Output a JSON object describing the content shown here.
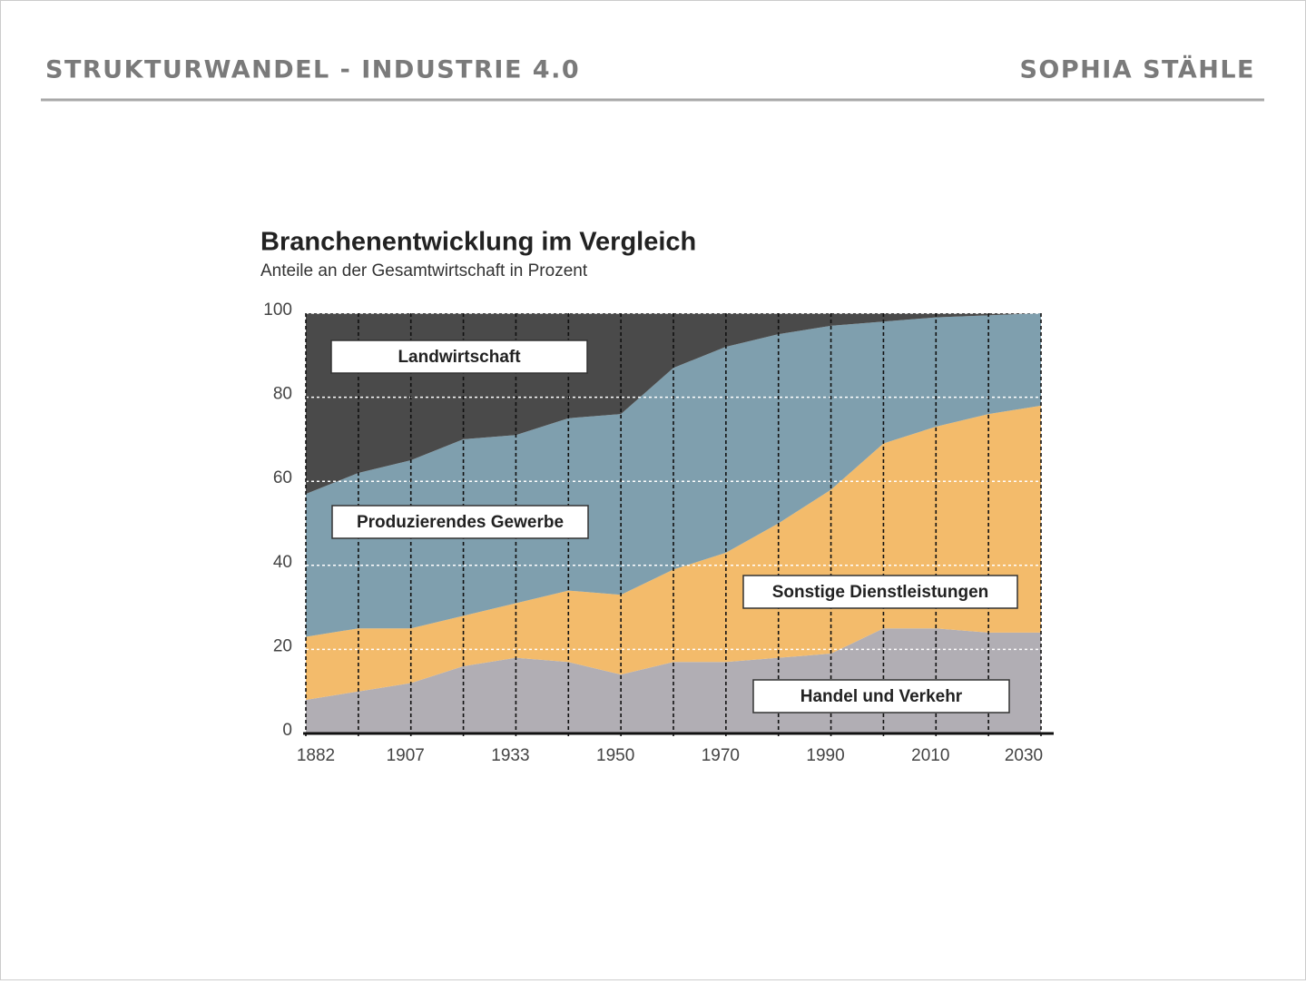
{
  "header": {
    "title": "STRUKTURWANDEL - INDUSTRIE 4.0",
    "author": "SOPHIA STÄHLE"
  },
  "chart_data": {
    "type": "stacked-area",
    "title": "Branchenentwicklung im Vergleich",
    "subtitle": "Anteile an der Gesamtwirtschaft in Prozent",
    "categories": [
      "1882",
      null,
      "1907",
      null,
      "1933",
      null,
      "1950",
      null,
      "1970",
      null,
      "1990",
      null,
      "2010",
      null,
      "2030"
    ],
    "series": [
      {
        "name": "Handel und Verkehr",
        "color": "#b1aeb4",
        "values": [
          8,
          10,
          12,
          16,
          18,
          17,
          14,
          17,
          17,
          18,
          19,
          25,
          25,
          24,
          24
        ]
      },
      {
        "name": "Sonstige Dienstleistungen",
        "color": "#f3bb6b",
        "values": [
          15,
          15,
          13,
          12,
          13,
          17,
          19,
          22,
          26,
          32,
          39,
          44,
          48,
          52,
          54
        ]
      },
      {
        "name": "Produzierendes Gewerbe",
        "color": "#7f9fae",
        "values": [
          34,
          37,
          40,
          42,
          40,
          41,
          43,
          48,
          49,
          45,
          39,
          29,
          26,
          23.5,
          22
        ]
      },
      {
        "name": "Landwirtschaft",
        "color": "#4a4a4a",
        "values": [
          43,
          38,
          35,
          30,
          29,
          25,
          24,
          13,
          8,
          5,
          3,
          2,
          1,
          0.5,
          0
        ]
      }
    ],
    "ylim": [
      0,
      100
    ],
    "yticks": [
      0,
      20,
      40,
      60,
      80,
      100
    ],
    "grid": true
  }
}
